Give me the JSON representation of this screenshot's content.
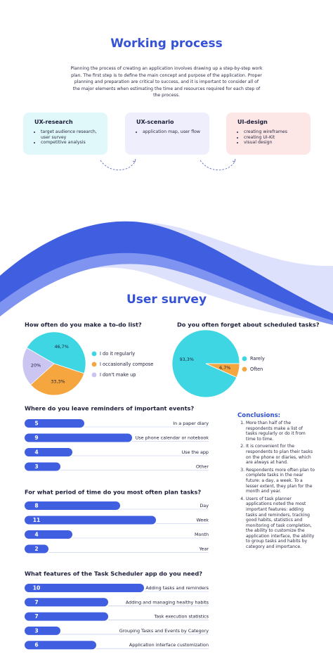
{
  "working_process": {
    "title": "Working process",
    "description": "Planning the process of creating an application involves drawing up a step-by-step work plan. The first step is to define the main concept and purpose of the application. Proper planning and preparation are critical to success, and it is important to consider all of the major elements when estimating the time and resources required for each step of the process.",
    "steps": [
      {
        "title": "UX-research",
        "items": [
          "target audience research, user survey",
          "competitive analysis"
        ]
      },
      {
        "title": "UX-scenario",
        "items": [
          "application map, user flow"
        ]
      },
      {
        "title": "UI-design",
        "items": [
          "creating wireframes",
          "creating UI-Kit",
          "visual design"
        ]
      }
    ]
  },
  "user_survey": {
    "title": "User survey"
  },
  "chart_data": [
    {
      "type": "pie",
      "title": "How often do you make a to-do list?",
      "categories": [
        "I do it regularly",
        "I occasionally compose",
        "I don't make up"
      ],
      "values": [
        46.7,
        33.3,
        20
      ],
      "value_labels": [
        "46,7%",
        "33,3%",
        "20%"
      ],
      "colors": [
        "#3fd6e3",
        "#f5a63f",
        "#cbc5f2"
      ]
    },
    {
      "type": "pie",
      "title": "Do you often forget about scheduled tasks?",
      "categories": [
        "Rarely",
        "Often"
      ],
      "values": [
        93.3,
        6.7
      ],
      "value_labels": [
        "93,3%",
        "6,7%"
      ],
      "colors": [
        "#3fd6e3",
        "#f5a63f"
      ]
    },
    {
      "type": "bar",
      "title": "Where do you leave reminders of important events?",
      "categories": [
        "In a paper diary",
        "Use phone calendar or notebook",
        "Use the app",
        "Other"
      ],
      "values": [
        5,
        9,
        4,
        3
      ],
      "color": "#3f5ee0"
    },
    {
      "type": "bar",
      "title": "For what period of time do you most often plan tasks?",
      "categories": [
        "Day",
        "Week",
        "Month",
        "Year"
      ],
      "values": [
        8,
        11,
        4,
        2
      ],
      "color": "#3f5ee0"
    },
    {
      "type": "bar",
      "title": "What features of the Task Scheduler app do you need?",
      "categories": [
        "Adding tasks and reminders",
        "Adding and managing healthy habits",
        "Task execution statistics",
        "Grouping Tasks and Events by Category",
        "Application interface customization"
      ],
      "values": [
        10,
        7,
        7,
        3,
        6
      ],
      "color": "#3f5ee0"
    }
  ],
  "conclusions": {
    "title": "Conclusions:",
    "items": [
      "More than half of the respondents make a list of tasks regularly or do it from time to time.",
      "It is convenient for the respondents to plan their tasks on the phone or diaries, which are always at hand.",
      "Respondents more often plan to complete tasks in the near future: a day, a week. To a lesser extent, they plan for the month and year.",
      "Users of task planner applications noted the most important features: adding tasks and reminders, tracking good habits, statistics and monitoring of task completion, the ability to customize the application interface, the ability to group tasks and habits by category and importance."
    ]
  }
}
